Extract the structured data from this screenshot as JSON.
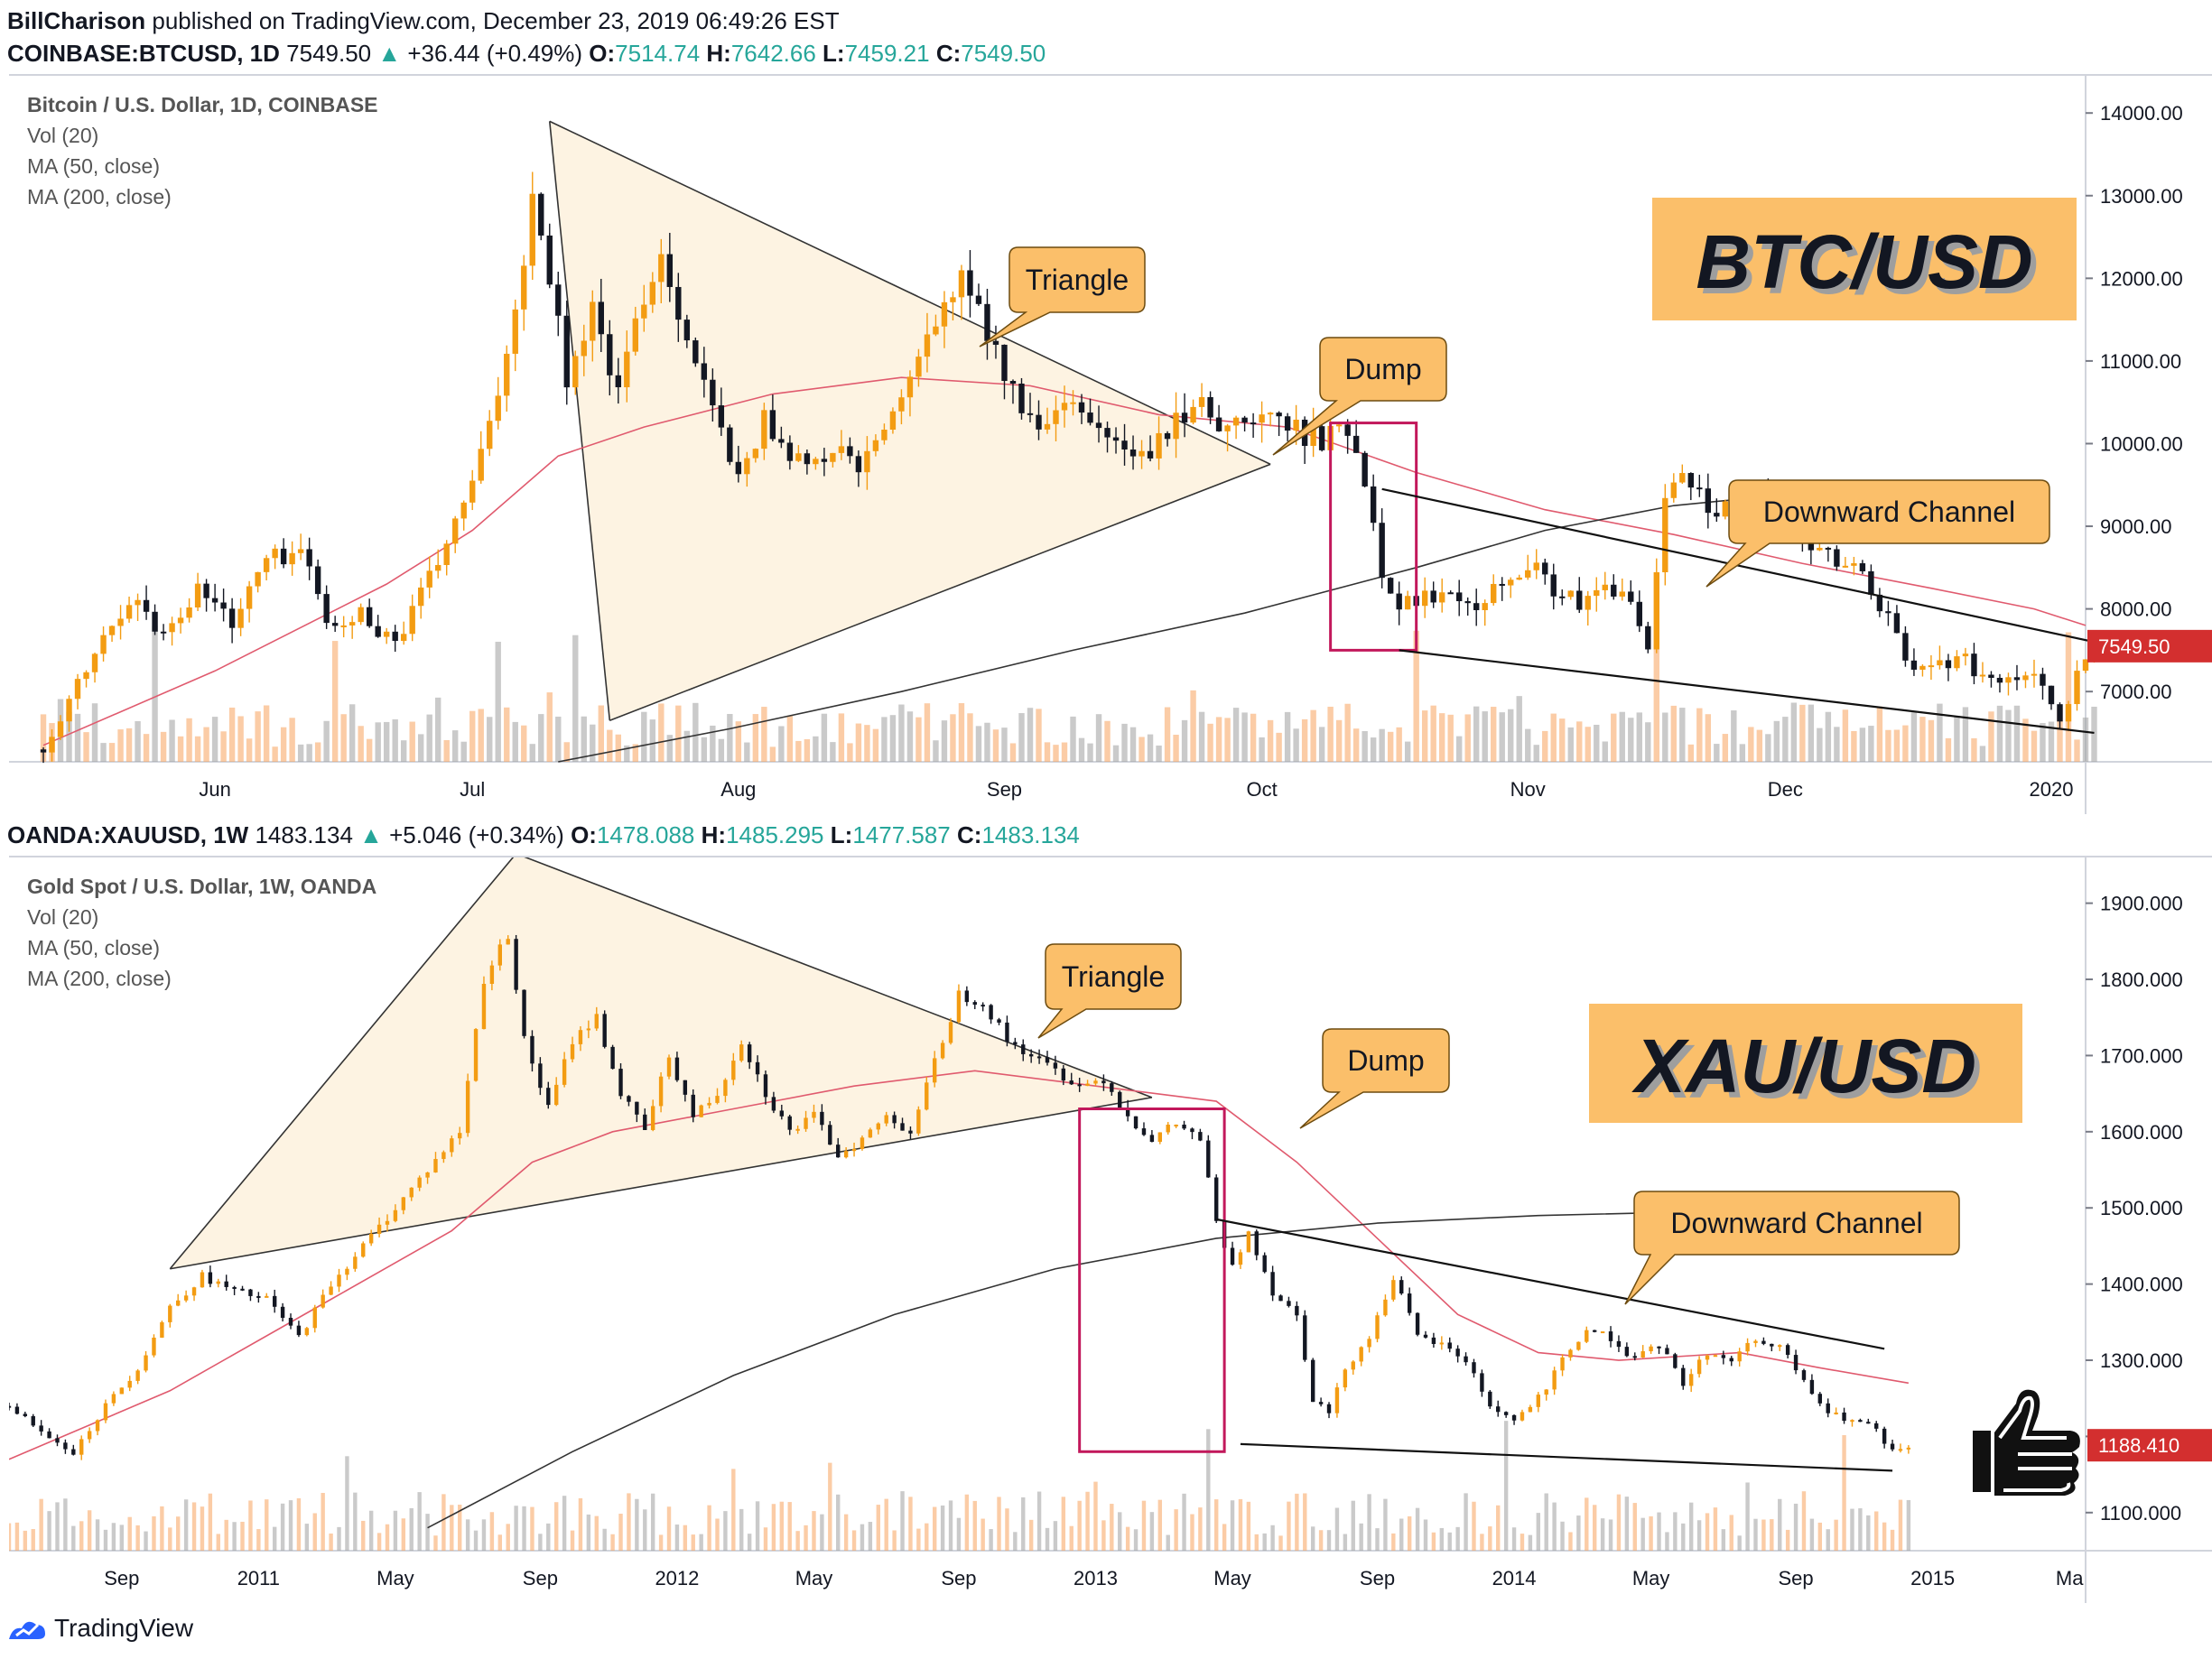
{
  "header": {
    "author": "BillCharison",
    "published_text": "published on TradingView.com, December 23, 2019 06:49:26 EST"
  },
  "chart_data": [
    {
      "type": "candlestick",
      "symbol_line": {
        "symbol": "COINBASE:BTCUSD, 1D",
        "last": "7549.50",
        "change": "+36.44 (+0.49%)",
        "open_label": "O:",
        "open": "7514.74",
        "high_label": "H:",
        "high": "7642.66",
        "low_label": "L:",
        "low": "7459.21",
        "close_label": "C:",
        "close": "7549.50"
      },
      "title": "Bitcoin / U.S. Dollar, 1D, COINBASE",
      "indicators": [
        "Vol (20)",
        "MA (50, close)",
        "MA (200, close)"
      ],
      "watermark": "BTC/USD",
      "price_label": "7549.50",
      "y_ticks": [
        "14000.00",
        "13000.00",
        "12000.00",
        "11000.00",
        "10000.00",
        "9000.00",
        "8000.00",
        "7000.00"
      ],
      "y_tick_values": [
        14000,
        13000,
        12000,
        11000,
        10000,
        9000,
        8000,
        7000
      ],
      "ylim": [
        6150,
        14450
      ],
      "x_ticks": [
        "Jun",
        "Jul",
        "Aug",
        "Sep",
        "Oct",
        "Nov",
        "Dec",
        "2020"
      ],
      "x_tick_days": [
        20,
        50,
        81,
        112,
        142,
        173,
        203,
        234
      ],
      "xlim": [
        -4,
        238
      ],
      "annotations": [
        "Triangle",
        "Dump",
        "Downward Channel"
      ],
      "close_path": [
        [
          0,
          6300
        ],
        [
          6,
          7450
        ],
        [
          10,
          8150
        ],
        [
          14,
          7700
        ],
        [
          18,
          8250
        ],
        [
          22,
          7850
        ],
        [
          26,
          8600
        ],
        [
          30,
          8700
        ],
        [
          34,
          7700
        ],
        [
          37,
          7950
        ],
        [
          41,
          7600
        ],
        [
          45,
          8350
        ],
        [
          49,
          9250
        ],
        [
          52,
          10150
        ],
        [
          55,
          11650
        ],
        [
          57,
          13000
        ],
        [
          59,
          12100
        ],
        [
          61,
          10800
        ],
        [
          64,
          11600
        ],
        [
          67,
          10600
        ],
        [
          70,
          11800
        ],
        [
          72,
          12300
        ],
        [
          75,
          11300
        ],
        [
          78,
          10400
        ],
        [
          81,
          9550
        ],
        [
          84,
          10300
        ],
        [
          87,
          9900
        ],
        [
          90,
          9700
        ],
        [
          93,
          10000
        ],
        [
          95,
          9600
        ],
        [
          98,
          10200
        ],
        [
          101,
          10700
        ],
        [
          104,
          11500
        ],
        [
          107,
          11950
        ],
        [
          110,
          11400
        ],
        [
          113,
          10600
        ],
        [
          116,
          10100
        ],
        [
          119,
          10400
        ],
        [
          122,
          10300
        ],
        [
          125,
          10000
        ],
        [
          128,
          9800
        ],
        [
          131,
          10100
        ],
        [
          134,
          10500
        ],
        [
          137,
          10300
        ],
        [
          140,
          10200
        ],
        [
          143,
          10350
        ],
        [
          146,
          10150
        ],
        [
          149,
          10050
        ],
        [
          152,
          10200
        ],
        [
          154,
          9600
        ],
        [
          156,
          8500
        ],
        [
          158,
          8050
        ],
        [
          161,
          8150
        ],
        [
          164,
          8250
        ],
        [
          167,
          8100
        ],
        [
          170,
          8350
        ],
        [
          173,
          8550
        ],
        [
          176,
          8250
        ],
        [
          179,
          8050
        ],
        [
          182,
          8200
        ],
        [
          185,
          8150
        ],
        [
          187,
          7450
        ],
        [
          189,
          9400
        ],
        [
          191,
          9750
        ],
        [
          194,
          9250
        ],
        [
          197,
          9150
        ],
        [
          200,
          9350
        ],
        [
          203,
          9150
        ],
        [
          206,
          8800
        ],
        [
          209,
          8550
        ],
        [
          212,
          8450
        ],
        [
          215,
          7850
        ],
        [
          218,
          7200
        ],
        [
          221,
          7400
        ],
        [
          224,
          7350
        ],
        [
          227,
          7100
        ],
        [
          229,
          7250
        ],
        [
          231,
          7200
        ],
        [
          233,
          7150
        ],
        [
          235,
          6650
        ],
        [
          237,
          7200
        ],
        [
          239,
          7500
        ]
      ],
      "ma50_path": [
        [
          0,
          6350
        ],
        [
          20,
          7250
        ],
        [
          40,
          8300
        ],
        [
          50,
          8950
        ],
        [
          60,
          9850
        ],
        [
          70,
          10200
        ],
        [
          85,
          10600
        ],
        [
          100,
          10800
        ],
        [
          115,
          10700
        ],
        [
          130,
          10350
        ],
        [
          145,
          10200
        ],
        [
          160,
          9650
        ],
        [
          175,
          9200
        ],
        [
          190,
          8900
        ],
        [
          205,
          8550
        ],
        [
          220,
          8250
        ],
        [
          232,
          8000
        ],
        [
          238,
          7800
        ]
      ],
      "ma200_path": [
        [
          60,
          6150
        ],
        [
          80,
          6550
        ],
        [
          100,
          7000
        ],
        [
          120,
          7500
        ],
        [
          140,
          7950
        ],
        [
          160,
          8500
        ],
        [
          175,
          8950
        ],
        [
          190,
          9250
        ],
        [
          205,
          9400
        ],
        [
          215,
          9450
        ]
      ]
    },
    {
      "type": "candlestick",
      "symbol_line": {
        "symbol": "OANDA:XAUUSD, 1W",
        "last": "1483.134",
        "change": "+5.046 (+0.34%)",
        "open_label": "O:",
        "open": "1478.088",
        "high_label": "H:",
        "high": "1485.295",
        "low_label": "L:",
        "low": "1477.587",
        "close_label": "C:",
        "close": "1483.134"
      },
      "title": "Gold Spot / U.S. Dollar, 1W, OANDA",
      "indicators": [
        "Vol (20)",
        "MA (50, close)",
        "MA (200, close)"
      ],
      "watermark": "XAU/USD",
      "price_label": "1188.410",
      "y_ticks": [
        "1900.000",
        "1800.000",
        "1700.000",
        "1600.000",
        "1500.000",
        "1400.000",
        "1300.000",
        "1200.000",
        "1100.000"
      ],
      "y_tick_values": [
        1900,
        1800,
        1700,
        1600,
        1500,
        1400,
        1300,
        1200,
        1100
      ],
      "ylim": [
        1050,
        1960
      ],
      "x_ticks": [
        "Sep",
        "2011",
        "May",
        "Sep",
        "2012",
        "May",
        "Sep",
        "2013",
        "May",
        "Sep",
        "2014",
        "May",
        "Sep",
        "2015",
        "Ma"
      ],
      "x_tick_weeks": [
        14,
        31,
        48,
        66,
        83,
        100,
        118,
        135,
        152,
        170,
        187,
        204,
        222,
        239,
        256
      ],
      "xlim": [
        0,
        258
      ],
      "annotations": [
        "Triangle",
        "Dump",
        "Downward Channel"
      ],
      "close_path": [
        [
          0,
          1240
        ],
        [
          4,
          1210
        ],
        [
          8,
          1180
        ],
        [
          12,
          1240
        ],
        [
          16,
          1290
        ],
        [
          20,
          1370
        ],
        [
          24,
          1410
        ],
        [
          28,
          1390
        ],
        [
          32,
          1380
        ],
        [
          36,
          1330
        ],
        [
          40,
          1400
        ],
        [
          44,
          1450
        ],
        [
          48,
          1500
        ],
        [
          52,
          1550
        ],
        [
          56,
          1600
        ],
        [
          59,
          1800
        ],
        [
          62,
          1860
        ],
        [
          64,
          1720
        ],
        [
          67,
          1630
        ],
        [
          70,
          1720
        ],
        [
          73,
          1750
        ],
        [
          76,
          1650
        ],
        [
          79,
          1600
        ],
        [
          82,
          1700
        ],
        [
          85,
          1620
        ],
        [
          88,
          1650
        ],
        [
          91,
          1720
        ],
        [
          94,
          1650
        ],
        [
          97,
          1600
        ],
        [
          100,
          1620
        ],
        [
          103,
          1570
        ],
        [
          106,
          1590
        ],
        [
          109,
          1620
        ],
        [
          112,
          1600
        ],
        [
          115,
          1690
        ],
        [
          118,
          1780
        ],
        [
          121,
          1770
        ],
        [
          124,
          1720
        ],
        [
          127,
          1700
        ],
        [
          130,
          1680
        ],
        [
          133,
          1660
        ],
        [
          136,
          1670
        ],
        [
          139,
          1620
        ],
        [
          142,
          1590
        ],
        [
          145,
          1610
        ],
        [
          148,
          1590
        ],
        [
          150,
          1480
        ],
        [
          152,
          1420
        ],
        [
          154,
          1470
        ],
        [
          157,
          1390
        ],
        [
          160,
          1360
        ],
        [
          162,
          1250
        ],
        [
          164,
          1230
        ],
        [
          166,
          1290
        ],
        [
          169,
          1330
        ],
        [
          172,
          1410
        ],
        [
          175,
          1330
        ],
        [
          178,
          1320
        ],
        [
          181,
          1300
        ],
        [
          184,
          1240
        ],
        [
          187,
          1220
        ],
        [
          190,
          1250
        ],
        [
          193,
          1300
        ],
        [
          196,
          1340
        ],
        [
          199,
          1330
        ],
        [
          202,
          1300
        ],
        [
          205,
          1320
        ],
        [
          208,
          1270
        ],
        [
          211,
          1310
        ],
        [
          214,
          1300
        ],
        [
          217,
          1330
        ],
        [
          220,
          1320
        ],
        [
          223,
          1270
        ],
        [
          226,
          1230
        ],
        [
          229,
          1220
        ],
        [
          232,
          1210
        ],
        [
          234,
          1180
        ],
        [
          236,
          1190
        ]
      ],
      "ma50_path": [
        [
          0,
          1170
        ],
        [
          20,
          1260
        ],
        [
          40,
          1380
        ],
        [
          55,
          1470
        ],
        [
          65,
          1560
        ],
        [
          75,
          1600
        ],
        [
          90,
          1630
        ],
        [
          105,
          1660
        ],
        [
          120,
          1680
        ],
        [
          135,
          1660
        ],
        [
          150,
          1640
        ],
        [
          160,
          1560
        ],
        [
          170,
          1460
        ],
        [
          180,
          1360
        ],
        [
          190,
          1310
        ],
        [
          200,
          1300
        ],
        [
          215,
          1310
        ],
        [
          225,
          1290
        ],
        [
          236,
          1270
        ]
      ],
      "ma200_path": [
        [
          52,
          1080
        ],
        [
          70,
          1180
        ],
        [
          90,
          1280
        ],
        [
          110,
          1360
        ],
        [
          130,
          1420
        ],
        [
          150,
          1460
        ],
        [
          170,
          1480
        ],
        [
          190,
          1490
        ],
        [
          210,
          1495
        ],
        [
          236,
          1495
        ]
      ]
    }
  ],
  "footer": {
    "brand": "TradingView"
  }
}
